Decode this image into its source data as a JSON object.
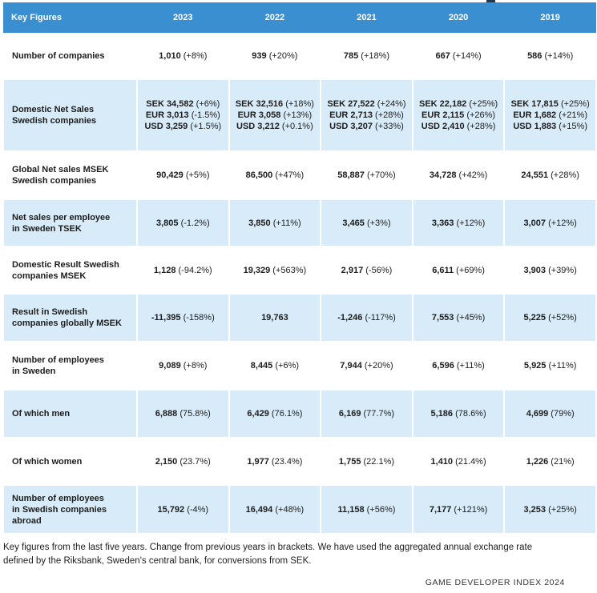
{
  "header": {
    "label": "Key Figures",
    "years": [
      "2023",
      "2022",
      "2021",
      "2020",
      "2019"
    ]
  },
  "rows": [
    {
      "label": [
        "Number of companies"
      ],
      "cells": [
        [
          {
            "n": "1,010",
            "c": "(+8%)"
          }
        ],
        [
          {
            "n": "939",
            "c": "(+20%)"
          }
        ],
        [
          {
            "n": "785",
            "c": "(+18%)"
          }
        ],
        [
          {
            "n": "667",
            "c": "(+14%)"
          }
        ],
        [
          {
            "n": "586",
            "c": "(+14%)"
          }
        ]
      ]
    },
    {
      "label": [
        "Domestic Net Sales",
        "Swedish companies"
      ],
      "cells": [
        [
          {
            "n": "SEK 34,582",
            "c": "(+6%)"
          },
          {
            "n": "EUR 3,013",
            "c": "(-1.5%)"
          },
          {
            "n": "USD 3,259",
            "c": "(+1.5%)"
          }
        ],
        [
          {
            "n": "SEK 32,516",
            "c": "(+18%)"
          },
          {
            "n": "EUR 3,058",
            "c": "(+13%)"
          },
          {
            "n": "USD 3,212",
            "c": "(+0.1%)"
          }
        ],
        [
          {
            "n": "SEK 27,522",
            "c": "(+24%)"
          },
          {
            "n": "EUR 2,713",
            "c": "(+28%)"
          },
          {
            "n": "USD 3,207",
            "c": "(+33%)"
          }
        ],
        [
          {
            "n": "SEK 22,182",
            "c": "(+25%)"
          },
          {
            "n": "EUR 2,115",
            "c": "(+26%)"
          },
          {
            "n": "USD 2,410",
            "c": "(+28%)"
          }
        ],
        [
          {
            "n": "SEK 17,815",
            "c": "(+25%)"
          },
          {
            "n": "EUR 1,682",
            "c": "(+21%)"
          },
          {
            "n": "USD 1,883",
            "c": "(+15%)"
          }
        ]
      ]
    },
    {
      "label": [
        "Global Net sales MSEK",
        "Swedish companies"
      ],
      "cells": [
        [
          {
            "n": "90,429",
            "c": "(+5%)"
          }
        ],
        [
          {
            "n": "86,500",
            "c": "(+47%)"
          }
        ],
        [
          {
            "n": "58,887",
            "c": "(+70%)"
          }
        ],
        [
          {
            "n": "34,728",
            "c": "(+42%)"
          }
        ],
        [
          {
            "n": "24,551",
            "c": "(+28%)"
          }
        ]
      ]
    },
    {
      "label": [
        "Net sales per employee",
        "in Sweden TSEK"
      ],
      "cells": [
        [
          {
            "n": "3,805",
            "c": "(-1.2%)"
          }
        ],
        [
          {
            "n": "3,850",
            "c": "(+11%)"
          }
        ],
        [
          {
            "n": "3,465",
            "c": "(+3%)"
          }
        ],
        [
          {
            "n": "3,363",
            "c": "(+12%)"
          }
        ],
        [
          {
            "n": "3,007",
            "c": "(+12%)"
          }
        ]
      ]
    },
    {
      "label": [
        "Domestic Result Swedish",
        "companies MSEK"
      ],
      "cells": [
        [
          {
            "n": "1,128",
            "c": "(-94.2%)"
          }
        ],
        [
          {
            "n": "19,329",
            "c": "(+563%)"
          }
        ],
        [
          {
            "n": "2,917",
            "c": "(-56%)"
          }
        ],
        [
          {
            "n": "6,611",
            "c": "(+69%)"
          }
        ],
        [
          {
            "n": "3,903",
            "c": "(+39%)"
          }
        ]
      ]
    },
    {
      "label": [
        "Result in Swedish",
        "companies globally MSEK"
      ],
      "cells": [
        [
          {
            "n": "-11,395",
            "c": "(-158%)"
          }
        ],
        [
          {
            "n": "19,763",
            "c": ""
          }
        ],
        [
          {
            "n": "-1,246",
            "c": "(-117%)"
          }
        ],
        [
          {
            "n": "7,553",
            "c": "(+45%)"
          }
        ],
        [
          {
            "n": "5,225",
            "c": "(+52%)"
          }
        ]
      ]
    },
    {
      "label": [
        "Number of employees",
        "in Sweden"
      ],
      "cells": [
        [
          {
            "n": "9,089",
            "c": "(+8%)"
          }
        ],
        [
          {
            "n": "8,445",
            "c": "(+6%)"
          }
        ],
        [
          {
            "n": "7,944",
            "c": "(+20%)"
          }
        ],
        [
          {
            "n": "6,596",
            "c": "(+11%)"
          }
        ],
        [
          {
            "n": "5,925",
            "c": "(+11%)"
          }
        ]
      ]
    },
    {
      "label": [
        "Of which men"
      ],
      "cells": [
        [
          {
            "n": "6,888",
            "c": "(75.8%)"
          }
        ],
        [
          {
            "n": "6,429",
            "c": "(76.1%)"
          }
        ],
        [
          {
            "n": "6,169",
            "c": "(77.7%)"
          }
        ],
        [
          {
            "n": "5,186",
            "c": "(78.6%)"
          }
        ],
        [
          {
            "n": "4,699",
            "c": "(79%)"
          }
        ]
      ]
    },
    {
      "label": [
        "Of which women"
      ],
      "cells": [
        [
          {
            "n": "2,150",
            "c": "(23.7%)"
          }
        ],
        [
          {
            "n": "1,977",
            "c": "(23.4%)"
          }
        ],
        [
          {
            "n": "1,755",
            "c": "(22.1%)"
          }
        ],
        [
          {
            "n": "1,410",
            "c": "(21.4%)"
          }
        ],
        [
          {
            "n": "1,226",
            "c": "(21%)"
          }
        ]
      ]
    },
    {
      "label": [
        "Number of employees",
        "in Swedish companies",
        "abroad"
      ],
      "cells": [
        [
          {
            "n": "15,792",
            "c": "(-4%)"
          }
        ],
        [
          {
            "n": "16,494",
            "c": "(+48%)"
          }
        ],
        [
          {
            "n": "11,158",
            "c": "(+56%)"
          }
        ],
        [
          {
            "n": "7,177",
            "c": "(+121%)"
          }
        ],
        [
          {
            "n": "3,253",
            "c": "(+25%)"
          }
        ]
      ]
    }
  ],
  "caption": "Key figures from the last five years. Change from previous years in brackets. We have used the aggregated annual exchange rate defined by the Riksbank, Sweden's central bank, for conversions from SEK.",
  "footer": "GAME DEVELOPER INDEX 2024",
  "colors": {
    "header_bg": "#3a8fd0",
    "header_text": "#ffffff",
    "row_blue": "#d8ebf8",
    "row_white": "#ffffff"
  }
}
